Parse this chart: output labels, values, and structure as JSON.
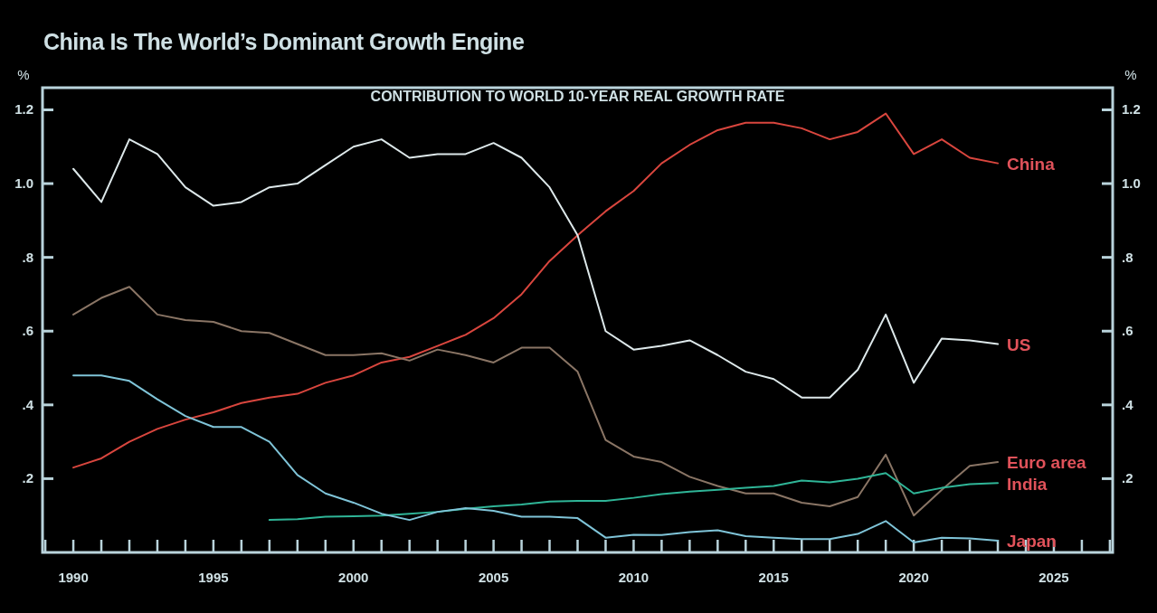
{
  "chart_data": {
    "type": "line",
    "title": "China Is The World’s Dominant Growth Engine",
    "subtitle": "CONTRIBUTION TO WORLD 10-YEAR REAL GROWTH RATE",
    "ylabel": "%",
    "y2label": "%",
    "x": [
      1990,
      1991,
      1992,
      1993,
      1994,
      1995,
      1996,
      1997,
      1998,
      1999,
      2000,
      2001,
      2002,
      2003,
      2004,
      2005,
      2006,
      2007,
      2008,
      2009,
      2010,
      2011,
      2012,
      2013,
      2014,
      2015,
      2016,
      2017,
      2018,
      2019,
      2020,
      2021,
      2022,
      2023
    ],
    "series": [
      {
        "name": "China",
        "color": "#d9463e",
        "values": [
          0.23,
          0.255,
          0.3,
          0.335,
          0.36,
          0.38,
          0.405,
          0.42,
          0.43,
          0.46,
          0.48,
          0.515,
          0.53,
          0.56,
          0.59,
          0.635,
          0.7,
          0.79,
          0.86,
          0.925,
          0.98,
          1.055,
          1.105,
          1.145,
          1.165,
          1.165,
          1.15,
          1.12,
          1.14,
          1.19,
          1.08,
          1.12,
          1.07,
          1.055
        ]
      },
      {
        "name": "US",
        "color": "#dde8ea",
        "values": [
          1.04,
          0.95,
          1.12,
          1.08,
          0.99,
          0.94,
          0.95,
          0.99,
          1.0,
          1.05,
          1.1,
          1.12,
          1.07,
          1.08,
          1.08,
          1.11,
          1.07,
          0.99,
          0.86,
          0.6,
          0.55,
          0.56,
          0.575,
          0.535,
          0.49,
          0.47,
          0.42,
          0.42,
          0.495,
          0.645,
          0.46,
          0.58,
          0.575,
          0.565
        ]
      },
      {
        "name": "Euro area",
        "color": "#8a7565",
        "values": [
          0.645,
          0.69,
          0.72,
          0.645,
          0.63,
          0.625,
          0.6,
          0.595,
          0.565,
          0.535,
          0.535,
          0.54,
          0.52,
          0.55,
          0.535,
          0.515,
          0.555,
          0.555,
          0.49,
          0.305,
          0.26,
          0.245,
          0.205,
          0.18,
          0.16,
          0.16,
          0.135,
          0.125,
          0.15,
          0.265,
          0.1,
          0.17,
          0.235,
          0.245
        ]
      },
      {
        "name": "India",
        "color": "#2fb597",
        "values": [
          null,
          null,
          null,
          null,
          null,
          null,
          null,
          0.088,
          0.09,
          0.097,
          0.098,
          0.1,
          0.105,
          0.11,
          0.118,
          0.125,
          0.13,
          0.138,
          0.14,
          0.14,
          0.148,
          0.158,
          0.165,
          0.17,
          0.175,
          0.18,
          0.195,
          0.19,
          0.2,
          0.215,
          0.16,
          0.175,
          0.185,
          0.188
        ]
      },
      {
        "name": "Japan",
        "color": "#7fc4d8",
        "values": [
          0.48,
          0.48,
          0.465,
          0.415,
          0.37,
          0.34,
          0.34,
          0.3,
          0.21,
          0.16,
          0.135,
          0.105,
          0.088,
          0.11,
          0.12,
          0.113,
          0.097,
          0.097,
          0.093,
          0.04,
          0.048,
          0.047,
          0.055,
          0.06,
          0.044,
          0.04,
          0.036,
          0.036,
          0.05,
          0.085,
          0.027,
          0.04,
          0.038,
          0.032
        ]
      }
    ],
    "xlim": [
      1988.9,
      2027.1
    ],
    "xticks": [
      {
        "value": 1989,
        "label": null
      },
      1990,
      {
        "value": 1991,
        "label": null
      },
      {
        "value": 1992,
        "label": null
      },
      {
        "value": 1993,
        "label": null
      },
      {
        "value": 1994,
        "label": null
      },
      1995,
      {
        "value": 1996,
        "label": null
      },
      {
        "value": 1997,
        "label": null
      },
      {
        "value": 1998,
        "label": null
      },
      {
        "value": 1999,
        "label": null
      },
      2000,
      {
        "value": 2001,
        "label": null
      },
      {
        "value": 2002,
        "label": null
      },
      {
        "value": 2003,
        "label": null
      },
      {
        "value": 2004,
        "label": null
      },
      2005,
      {
        "value": 2006,
        "label": null
      },
      {
        "value": 2007,
        "label": null
      },
      {
        "value": 2008,
        "label": null
      },
      {
        "value": 2009,
        "label": null
      },
      2010,
      {
        "value": 2011,
        "label": null
      },
      {
        "value": 2012,
        "label": null
      },
      {
        "value": 2013,
        "label": null
      },
      {
        "value": 2014,
        "label": null
      },
      2015,
      {
        "value": 2016,
        "label": null
      },
      {
        "value": 2017,
        "label": null
      },
      {
        "value": 2018,
        "label": null
      },
      {
        "value": 2019,
        "label": null
      },
      2020,
      {
        "value": 2021,
        "label": null
      },
      {
        "value": 2022,
        "label": null
      },
      {
        "value": 2023,
        "label": null
      },
      {
        "value": 2024,
        "label": null
      },
      2025,
      {
        "value": 2026,
        "label": null
      },
      {
        "value": 2027,
        "label": null
      }
    ],
    "ylim": [
      0,
      1.26
    ],
    "yticks": [
      {
        "value": 0.2,
        "label": ".2"
      },
      {
        "value": 0.4,
        "label": ".4"
      },
      {
        "value": 0.6,
        "label": ".6"
      },
      {
        "value": 0.8,
        "label": ".8"
      },
      {
        "value": 1,
        "label": "1.0"
      },
      {
        "value": 1.2,
        "label": "1.2"
      }
    ],
    "y2lim": [
      0,
      1.26
    ],
    "y2ticks": [
      {
        "value": 0.2,
        "label": ".2"
      },
      {
        "value": 0.4,
        "label": ".4"
      },
      {
        "value": 0.6,
        "label": ".6"
      },
      {
        "value": 0.8,
        "label": ".8"
      },
      {
        "value": 1,
        "label": "1.0"
      },
      {
        "value": 1.2,
        "label": "1.2"
      }
    ],
    "grid": false,
    "line_style": "solid",
    "marker": "none"
  }
}
